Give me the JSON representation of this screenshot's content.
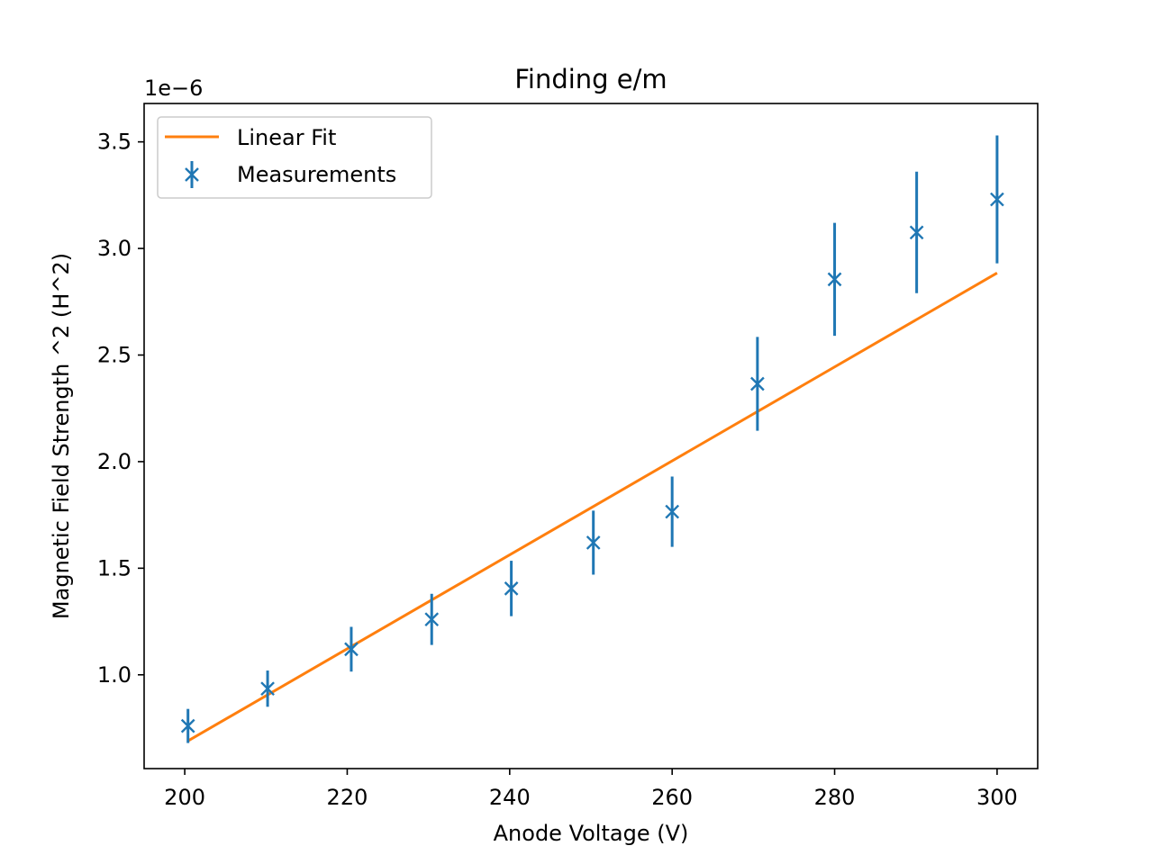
{
  "chart_data": {
    "type": "scatter",
    "title": "Finding e/m",
    "xlabel": "Anode Voltage (V)",
    "ylabel": "Magnetic Field Strength ^2 (H^2)",
    "y_offset_label": "1e−6",
    "xlim": [
      195,
      305
    ],
    "ylim": [
      0.56,
      3.68
    ],
    "x_ticks": [
      200,
      220,
      240,
      260,
      280,
      300
    ],
    "y_ticks": [
      1.0,
      1.5,
      2.0,
      2.5,
      3.0,
      3.5
    ],
    "y_tick_labels": [
      "1.0",
      "1.5",
      "2.0",
      "2.5",
      "3.0",
      "3.5"
    ],
    "grid": false,
    "legend": {
      "placement": "top-left",
      "entries": [
        "Linear Fit",
        "Measurements"
      ]
    },
    "series": [
      {
        "name": "Linear Fit",
        "kind": "line",
        "color": "#ff7f0e",
        "x": [
          200.4,
          300.0
        ],
        "y": [
          0.69,
          2.885
        ]
      },
      {
        "name": "Measurements",
        "kind": "errorbar",
        "color": "#1f77b4",
        "x": [
          200.4,
          210.2,
          220.5,
          230.4,
          240.2,
          250.3,
          260.0,
          270.5,
          280.0,
          290.1,
          300.0
        ],
        "y": [
          0.76,
          0.935,
          1.12,
          1.26,
          1.405,
          1.62,
          1.765,
          2.365,
          2.855,
          3.075,
          3.23
        ],
        "yerr": [
          0.08,
          0.085,
          0.105,
          0.12,
          0.13,
          0.15,
          0.165,
          0.22,
          0.265,
          0.285,
          0.3
        ]
      }
    ]
  }
}
